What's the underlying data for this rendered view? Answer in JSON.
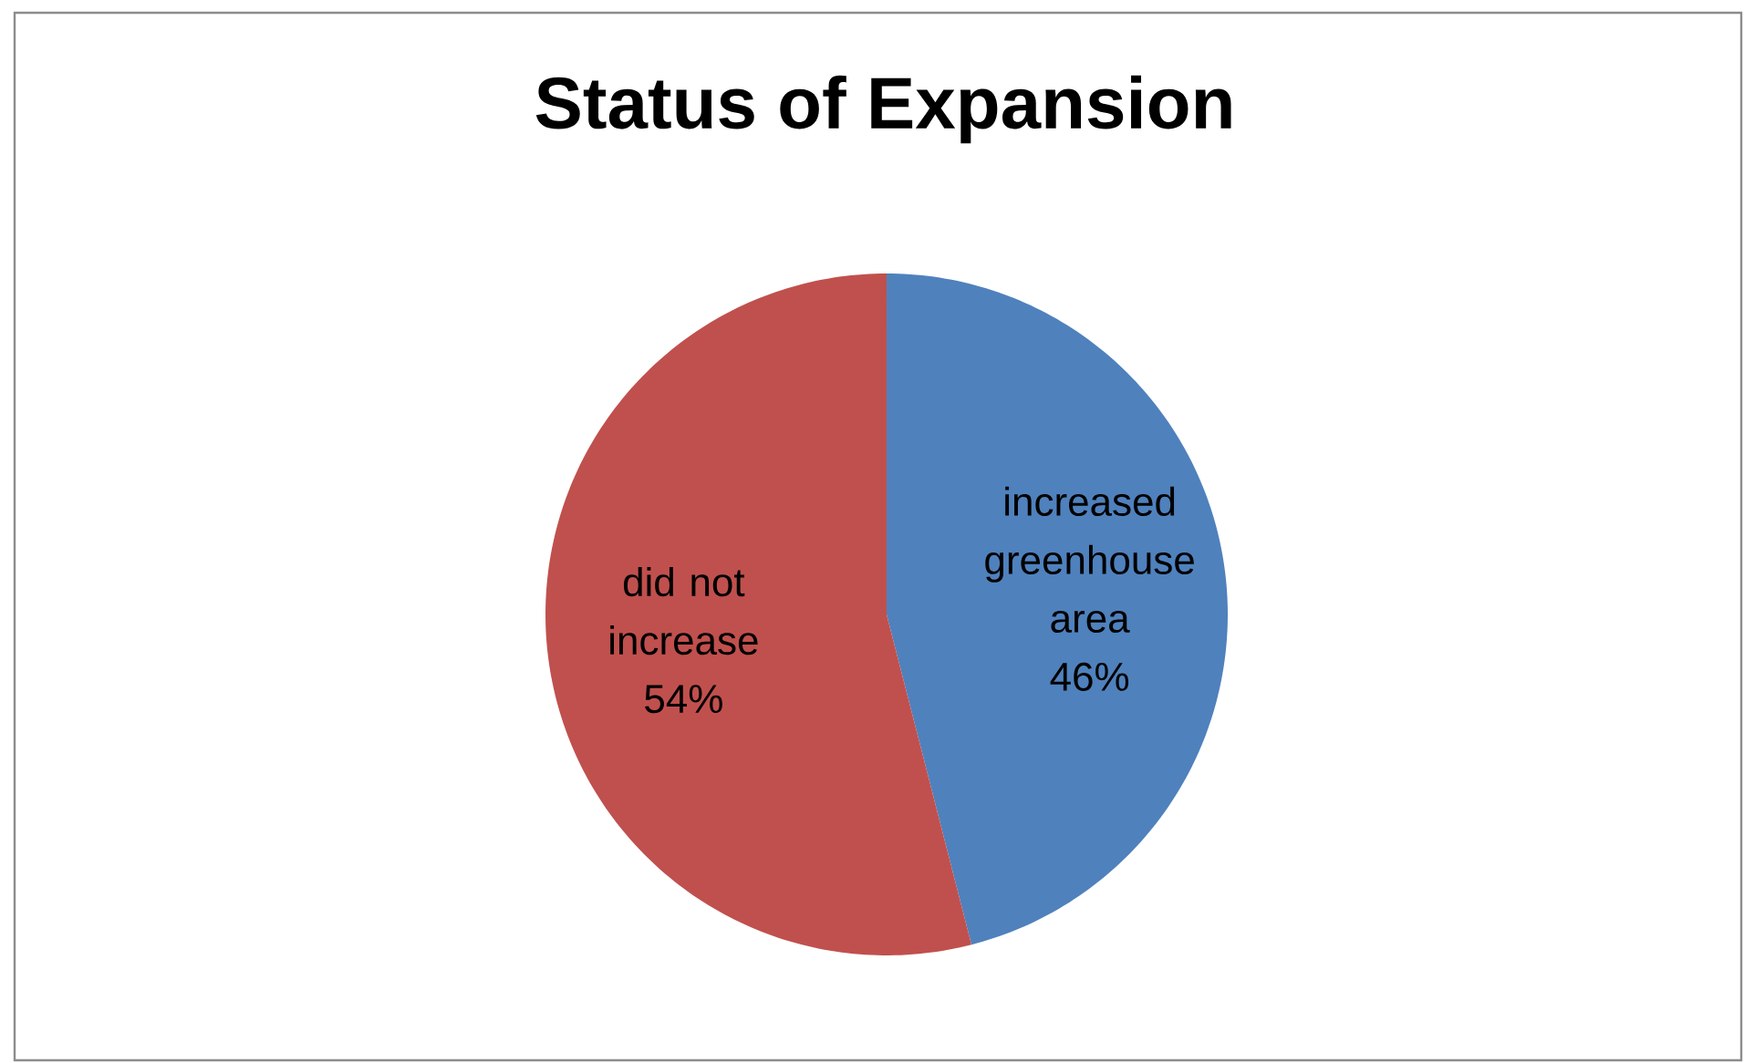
{
  "chart_data": {
    "type": "pie",
    "title": "Status of Expansion",
    "categories": [
      "increased greenhouse area",
      "did not increase"
    ],
    "values": [
      46,
      54
    ],
    "colors": [
      "#4f81bd",
      "#c0504d"
    ],
    "value_labels": [
      "46%",
      "54%"
    ]
  }
}
